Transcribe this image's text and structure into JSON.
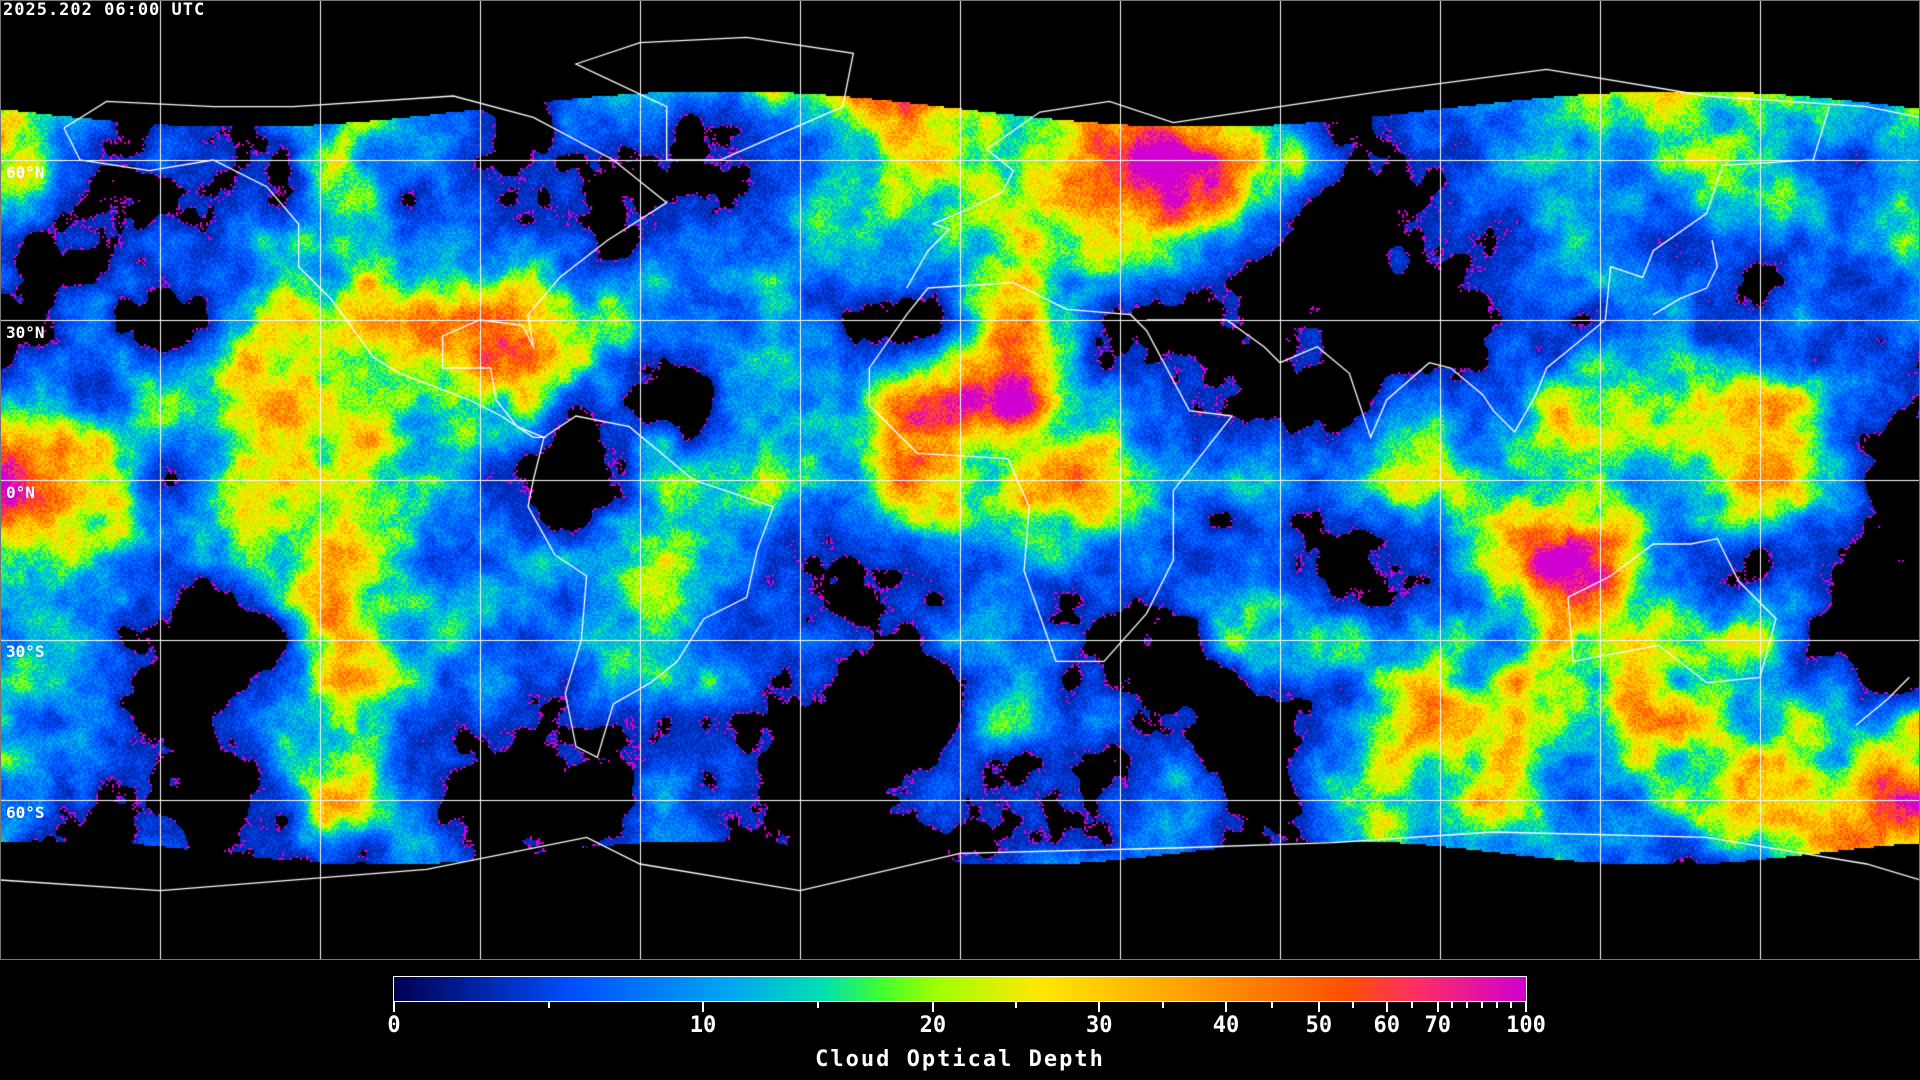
{
  "header": {
    "timestamp": "2025.202 06:00 UTC"
  },
  "map": {
    "projection": "equirectangular",
    "lat_labels": [
      "60°N",
      "30°N",
      "0°N",
      "30°S",
      "60°S"
    ],
    "grid_spacing_deg": 30,
    "grid_color": "#ffffff",
    "coastline_color": "#ffffff",
    "no_data_color": "#000000"
  },
  "colorbar": {
    "title": "Cloud Optical Depth",
    "tick_labels": [
      "0",
      "10",
      "20",
      "30",
      "40",
      "50",
      "60",
      "70",
      "100"
    ],
    "tick_values": [
      0,
      10,
      20,
      30,
      40,
      50,
      60,
      70,
      100
    ],
    "minor_tick_values": [
      5,
      15,
      25,
      35,
      45,
      55,
      65,
      75,
      80,
      85,
      90,
      95
    ],
    "range": [
      0,
      100
    ],
    "colors": [
      "#000050",
      "#0030c0",
      "#0050ff",
      "#00a8f0",
      "#00e0b0",
      "#40ff30",
      "#a0ff00",
      "#ffe800",
      "#ffa000",
      "#ff5000",
      "#ff3060",
      "#d000d0"
    ]
  }
}
